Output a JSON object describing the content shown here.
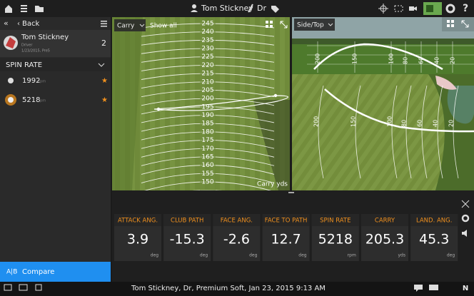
{
  "topbar": {
    "user": "Tom Stickney",
    "club": "Dr"
  },
  "sidebar": {
    "back": "Back",
    "player": {
      "name": "Tom Stickney",
      "club": "Driver",
      "session": "1/23/2015, Pre5",
      "count": "2"
    },
    "section": "SPIN RATE",
    "shots": [
      {
        "value": "1992",
        "unit": "rpm"
      },
      {
        "value": "5218",
        "unit": "rpm"
      }
    ],
    "compare": {
      "badge": "A|B",
      "label": "Compare"
    }
  },
  "left_view": {
    "mode": "Carry",
    "filter": "Show all",
    "ruler": [
      "245",
      "240",
      "235",
      "230",
      "225",
      "220",
      "215",
      "210",
      "205",
      "200",
      "195",
      "190",
      "185",
      "180",
      "175",
      "170",
      "165",
      "160",
      "155",
      "150"
    ],
    "footer": "Carry yds"
  },
  "right_view": {
    "mode": "Side/Top",
    "side_ticks": [
      "200",
      "150",
      "100",
      "80",
      "60",
      "40",
      "20"
    ],
    "top_ticks": [
      "200",
      "150",
      "100",
      "80",
      "60",
      "40",
      "20"
    ]
  },
  "metrics": [
    {
      "label": "ATTACK ANG.",
      "value": "3.9",
      "unit": "deg"
    },
    {
      "label": "CLUB PATH",
      "value": "-15.3",
      "unit": "deg"
    },
    {
      "label": "FACE ANG.",
      "value": "-2.6",
      "unit": "deg"
    },
    {
      "label": "FACE TO PATH",
      "value": "12.7",
      "unit": "deg"
    },
    {
      "label": "SPIN RATE",
      "value": "5218",
      "unit": "rpm"
    },
    {
      "label": "CARRY",
      "value": "205.3",
      "unit": "yds"
    },
    {
      "label": "LAND. ANG.",
      "value": "45.3",
      "unit": "deg"
    }
  ],
  "status": {
    "text": "Tom Stickney, Dr, Premium Soft, Jan 23, 2015 9:13 AM",
    "compass": "N"
  }
}
